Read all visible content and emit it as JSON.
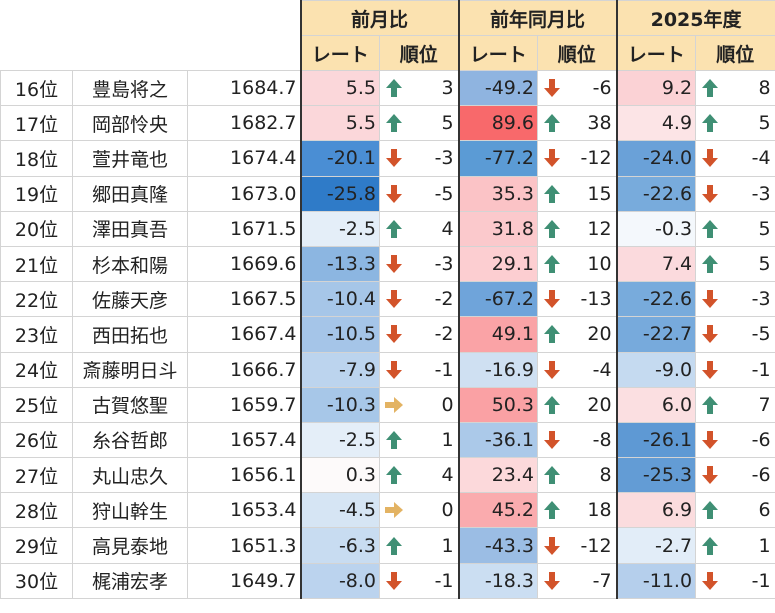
{
  "header": {
    "groups": [
      "前月比",
      "前年同月比",
      "2025年度"
    ],
    "sub_rate": "レート",
    "sub_rank": "順位"
  },
  "rows": [
    {
      "rank": "16位",
      "name": "豊島将之",
      "score": "1684.7",
      "m_rate": "5.5",
      "m_chg": "3",
      "m_dir": "up",
      "m_bg": "#fbd7da",
      "y_rate": "-49.2",
      "y_chg": "-6",
      "y_dir": "down",
      "y_bg": "#8fb4e0",
      "f_rate": "9.2",
      "f_chg": "8",
      "f_dir": "up",
      "f_bg": "#fbd2d5"
    },
    {
      "rank": "17位",
      "name": "岡部怜央",
      "score": "1682.7",
      "m_rate": "5.5",
      "m_chg": "5",
      "m_dir": "up",
      "m_bg": "#fbd7da",
      "y_rate": "89.6",
      "y_chg": "38",
      "y_dir": "up",
      "y_bg": "#f8696b",
      "f_rate": "4.9",
      "f_chg": "5",
      "f_dir": "up",
      "f_bg": "#fce4e6"
    },
    {
      "rank": "18位",
      "name": "萱井竜也",
      "score": "1674.4",
      "m_rate": "-20.1",
      "m_chg": "-3",
      "m_dir": "down",
      "m_bg": "#4a8ed4",
      "y_rate": "-77.2",
      "y_chg": "-12",
      "y_dir": "down",
      "y_bg": "#5b9bd5",
      "f_rate": "-24.0",
      "f_chg": "-4",
      "f_dir": "down",
      "f_bg": "#6aa1d8"
    },
    {
      "rank": "19位",
      "name": "郷田真隆",
      "score": "1673.0",
      "m_rate": "-25.8",
      "m_chg": "-5",
      "m_dir": "down",
      "m_bg": "#2f7bc8",
      "y_rate": "35.3",
      "y_chg": "15",
      "y_dir": "up",
      "y_bg": "#fbc3c6",
      "f_rate": "-22.6",
      "f_chg": "-3",
      "f_dir": "down",
      "f_bg": "#78abdc"
    },
    {
      "rank": "20位",
      "name": "澤田真吾",
      "score": "1671.5",
      "m_rate": "-2.5",
      "m_chg": "4",
      "m_dir": "up",
      "m_bg": "#e4eef8",
      "y_rate": "31.8",
      "y_chg": "12",
      "y_dir": "up",
      "y_bg": "#fbc9cc",
      "f_rate": "-0.3",
      "f_chg": "5",
      "f_dir": "up",
      "f_bg": "#f4f8fc"
    },
    {
      "rank": "21位",
      "name": "杉本和陽",
      "score": "1669.6",
      "m_rate": "-13.3",
      "m_chg": "-3",
      "m_dir": "down",
      "m_bg": "#8cb6e1",
      "y_rate": "29.1",
      "y_chg": "10",
      "y_dir": "up",
      "y_bg": "#fcced1",
      "f_rate": "7.4",
      "f_chg": "5",
      "f_dir": "up",
      "f_bg": "#fbdadd"
    },
    {
      "rank": "22位",
      "name": "佐藤天彦",
      "score": "1667.5",
      "m_rate": "-10.4",
      "m_chg": "-2",
      "m_dir": "down",
      "m_bg": "#a6c6e8",
      "y_rate": "-67.2",
      "y_chg": "-13",
      "y_dir": "down",
      "y_bg": "#6fa4da",
      "f_rate": "-22.6",
      "f_chg": "-3",
      "f_dir": "down",
      "f_bg": "#78abdc"
    },
    {
      "rank": "23位",
      "name": "西田拓也",
      "score": "1667.4",
      "m_rate": "-10.5",
      "m_chg": "-2",
      "m_dir": "down",
      "m_bg": "#a5c5e8",
      "y_rate": "49.1",
      "y_chg": "20",
      "y_dir": "up",
      "y_bg": "#faa3a6",
      "f_rate": "-22.7",
      "f_chg": "-5",
      "f_dir": "down",
      "f_bg": "#77aadc"
    },
    {
      "rank": "24位",
      "name": "斎藤明日斗",
      "score": "1666.7",
      "m_rate": "-7.9",
      "m_chg": "-1",
      "m_dir": "down",
      "m_bg": "#bcd4ee",
      "y_rate": "-16.9",
      "y_chg": "-4",
      "y_dir": "down",
      "y_bg": "#cfe0f2",
      "f_rate": "-9.0",
      "f_chg": "-1",
      "f_dir": "down",
      "f_bg": "#c5daf0"
    },
    {
      "rank": "25位",
      "name": "古賀悠聖",
      "score": "1659.7",
      "m_rate": "-10.3",
      "m_chg": "0",
      "m_dir": "flat",
      "m_bg": "#a7c7e8",
      "y_rate": "50.3",
      "y_chg": "20",
      "y_dir": "up",
      "y_bg": "#faa1a4",
      "f_rate": "6.0",
      "f_chg": "7",
      "f_dir": "up",
      "f_bg": "#fbdfe1"
    },
    {
      "rank": "26位",
      "name": "糸谷哲郎",
      "score": "1657.4",
      "m_rate": "-2.5",
      "m_chg": "1",
      "m_dir": "up",
      "m_bg": "#e4eef8",
      "y_rate": "-36.1",
      "y_chg": "-8",
      "y_dir": "down",
      "y_bg": "#abc9e9",
      "f_rate": "-26.1",
      "f_chg": "-6",
      "f_dir": "down",
      "f_bg": "#5e99d4"
    },
    {
      "rank": "27位",
      "name": "丸山忠久",
      "score": "1656.1",
      "m_rate": "0.3",
      "m_chg": "4",
      "m_dir": "up",
      "m_bg": "#fdfafa",
      "y_rate": "23.4",
      "y_chg": "8",
      "y_dir": "up",
      "y_bg": "#fcd9db",
      "f_rate": "-25.3",
      "f_chg": "-6",
      "f_dir": "down",
      "f_bg": "#639cd5"
    },
    {
      "rank": "28位",
      "name": "狩山幹生",
      "score": "1653.4",
      "m_rate": "-4.5",
      "m_chg": "0",
      "m_dir": "flat",
      "m_bg": "#d6e5f4",
      "y_rate": "45.2",
      "y_chg": "18",
      "y_dir": "up",
      "y_bg": "#faabae",
      "f_rate": "6.9",
      "f_chg": "6",
      "f_dir": "up",
      "f_bg": "#fbdcde"
    },
    {
      "rank": "29位",
      "name": "高見泰地",
      "score": "1651.3",
      "m_rate": "-6.3",
      "m_chg": "1",
      "m_dir": "up",
      "m_bg": "#c8dcf1",
      "y_rate": "-43.3",
      "y_chg": "-12",
      "y_dir": "down",
      "y_bg": "#9bbde4",
      "f_rate": "-2.7",
      "f_chg": "1",
      "f_dir": "up",
      "f_bg": "#e2edf8"
    },
    {
      "rank": "30位",
      "name": "梶浦宏孝",
      "score": "1649.7",
      "m_rate": "-8.0",
      "m_chg": "-1",
      "m_dir": "down",
      "m_bg": "#bbd3ee",
      "y_rate": "-18.3",
      "y_chg": "-7",
      "y_dir": "down",
      "y_bg": "#cbdef2",
      "f_rate": "-11.0",
      "f_chg": "-1",
      "f_dir": "down",
      "f_bg": "#b5cfec"
    }
  ],
  "arrow_colors": {
    "up": "#3f8f74",
    "down": "#d2532a",
    "flat": "#e3b363"
  }
}
